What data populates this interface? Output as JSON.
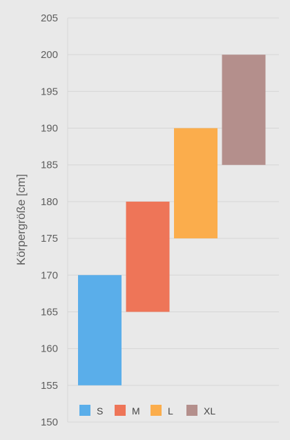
{
  "chart_data": {
    "type": "bar",
    "categories": [
      "S",
      "M",
      "L",
      "XL"
    ],
    "ranges": [
      {
        "name": "S",
        "low": 155,
        "high": 170,
        "color": "#5aaeea"
      },
      {
        "name": "M",
        "low": 165,
        "high": 180,
        "color": "#ee7558"
      },
      {
        "name": "L",
        "low": 175,
        "high": 190,
        "color": "#fbad4c"
      },
      {
        "name": "XL",
        "low": 185,
        "high": 200,
        "color": "#b48f8c"
      }
    ],
    "xlabel": "",
    "ylabel": "Körpergröße [cm]",
    "ylim": [
      150,
      205
    ],
    "yticks": [
      150,
      155,
      160,
      165,
      170,
      175,
      180,
      185,
      190,
      195,
      200,
      205
    ],
    "grid": true,
    "legend_position": "bottom-left"
  }
}
